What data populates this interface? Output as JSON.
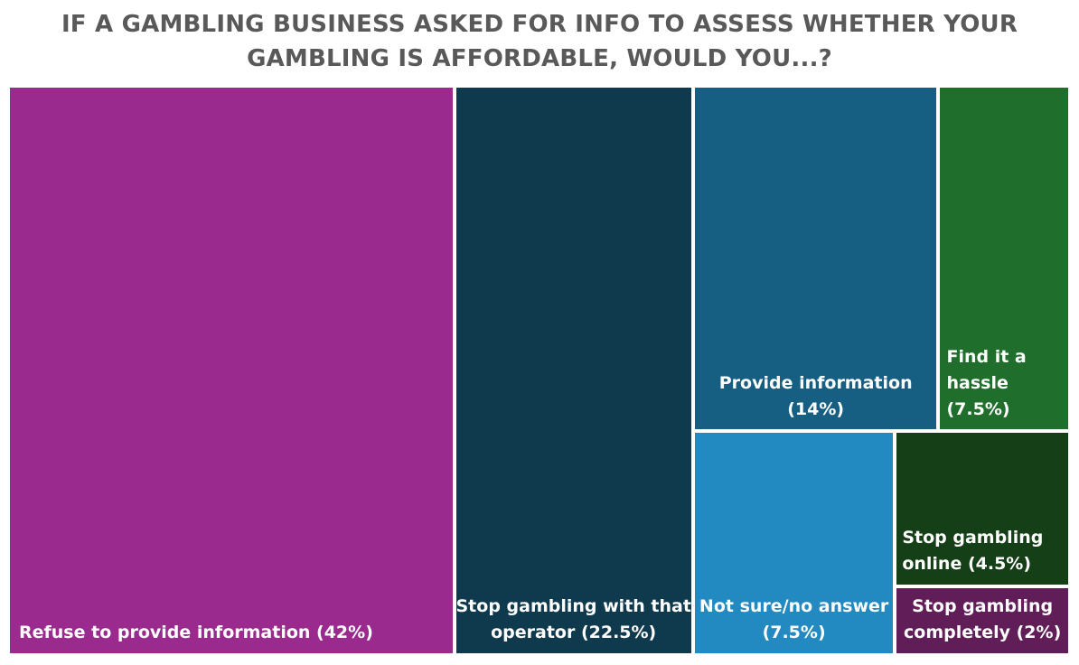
{
  "chart_data": {
    "type": "treemap",
    "title": "IF A GAMBLING BUSINESS ASKED FOR INFO TO ASSESS WHETHER YOUR GAMBLING IS AFFORDABLE, WOULD YOU...?",
    "title_lines": [
      "IF A GAMBLING BUSINESS ASKED FOR INFO TO ASSESS WHETHER YOUR",
      "GAMBLING IS AFFORDABLE, WOULD YOU...?"
    ],
    "unit": "%",
    "items": [
      {
        "label": "Refuse to provide information (42%)",
        "label_lines": [
          "Refuse to provide information (42%)"
        ],
        "value": 42,
        "color": "#9b2a8f"
      },
      {
        "label": "Stop gambling with that operator (22.5%)",
        "label_lines": [
          "Stop gambling with that",
          "operator (22.5%)"
        ],
        "value": 22.5,
        "color": "#0f3a4e"
      },
      {
        "label": "Provide information (14%)",
        "label_lines": [
          "Provide information",
          "(14%)"
        ],
        "value": 14,
        "color": "#165e82"
      },
      {
        "label": "Find it a hassle (7.5%)",
        "label_lines": [
          "Find it a",
          "hassle",
          "(7.5%)"
        ],
        "value": 7.5,
        "color": "#1f6e2b"
      },
      {
        "label": "Not sure/no answer (7.5%)",
        "label_lines": [
          "Not sure/no answer",
          "(7.5%)"
        ],
        "value": 7.5,
        "color": "#2289c1"
      },
      {
        "label": "Stop gambling online (4.5%)",
        "label_lines": [
          "Stop gambling",
          "online (4.5%)"
        ],
        "value": 4.5,
        "color": "#153f17"
      },
      {
        "label": "Stop gambling completely (2%)",
        "label_lines": [
          "Stop gambling",
          "completely (2%)"
        ],
        "value": 2,
        "color": "#601d58"
      }
    ]
  }
}
